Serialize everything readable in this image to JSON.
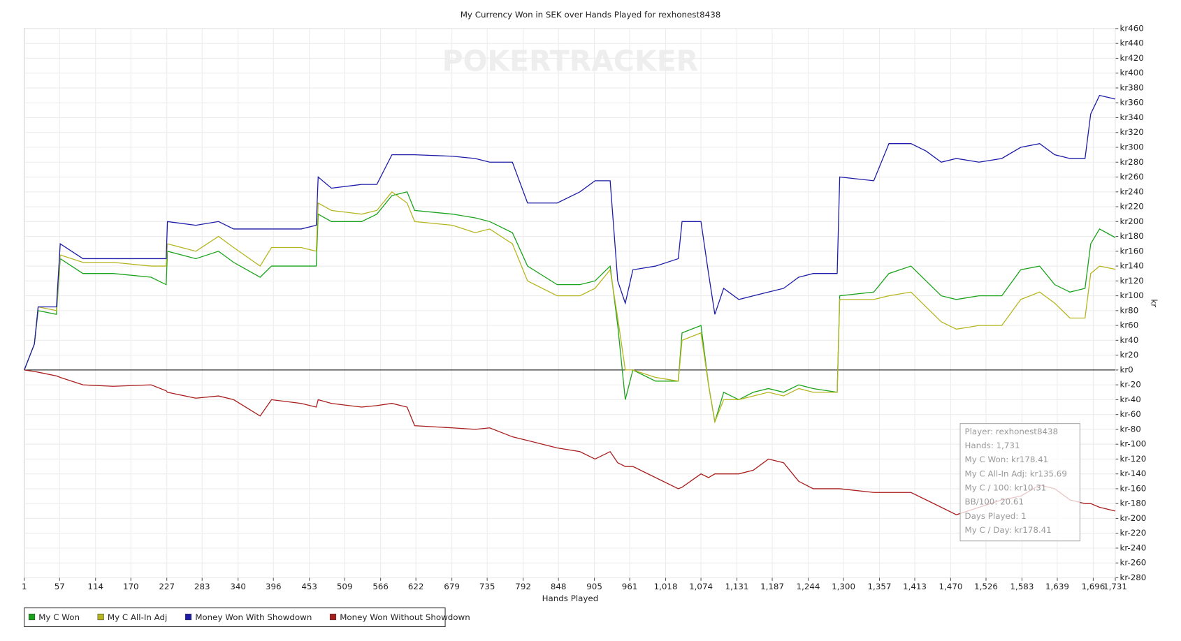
{
  "chart_data": {
    "type": "line",
    "title": "My Currency Won in SEK over Hands Played for rexhonest8438",
    "watermark": "POKERTRACKER",
    "x_label": "Hands Played",
    "y_label": "kr",
    "xlim": [
      1,
      1731
    ],
    "ylim": [
      -280,
      460
    ],
    "grid": true,
    "legend": "bottom-left",
    "xticks": [
      1,
      57,
      114,
      170,
      227,
      283,
      340,
      396,
      453,
      509,
      566,
      622,
      679,
      735,
      792,
      848,
      905,
      961,
      {
        "value": 1018,
        "label": "1,018"
      },
      {
        "value": 1074,
        "label": "1,074"
      },
      {
        "value": 1131,
        "label": "1,131"
      },
      {
        "value": 1187,
        "label": "1,187"
      },
      {
        "value": 1244,
        "label": "1,244"
      },
      {
        "value": 1300,
        "label": "1,300"
      },
      {
        "value": 1357,
        "label": "1,357"
      },
      {
        "value": 1413,
        "label": "1,413"
      },
      {
        "value": 1470,
        "label": "1,470"
      },
      {
        "value": 1526,
        "label": "1,526"
      },
      {
        "value": 1583,
        "label": "1,583"
      },
      {
        "value": 1639,
        "label": "1,639"
      },
      {
        "value": 1696,
        "label": "1,696"
      },
      {
        "value": 1731,
        "label": "1,731"
      }
    ],
    "yticks": [
      {
        "value": 460,
        "label": "kr460"
      },
      {
        "value": 440,
        "label": "kr440"
      },
      {
        "value": 420,
        "label": "kr420"
      },
      {
        "value": 400,
        "label": "kr400"
      },
      {
        "value": 380,
        "label": "kr380"
      },
      {
        "value": 360,
        "label": "kr360"
      },
      {
        "value": 340,
        "label": "kr340"
      },
      {
        "value": 320,
        "label": "kr320"
      },
      {
        "value": 300,
        "label": "kr300"
      },
      {
        "value": 280,
        "label": "kr280"
      },
      {
        "value": 260,
        "label": "kr260"
      },
      {
        "value": 240,
        "label": "kr240"
      },
      {
        "value": 220,
        "label": "kr220"
      },
      {
        "value": 200,
        "label": "kr200"
      },
      {
        "value": 180,
        "label": "kr180"
      },
      {
        "value": 160,
        "label": "kr160"
      },
      {
        "value": 140,
        "label": "kr140"
      },
      {
        "value": 120,
        "label": "kr120"
      },
      {
        "value": 100,
        "label": "kr100"
      },
      {
        "value": 80,
        "label": "kr80"
      },
      {
        "value": 60,
        "label": "kr60"
      },
      {
        "value": 40,
        "label": "kr40"
      },
      {
        "value": 20,
        "label": "kr20"
      },
      {
        "value": 0,
        "label": "kr0"
      },
      {
        "value": -20,
        "label": "kr-20"
      },
      {
        "value": -40,
        "label": "kr-40"
      },
      {
        "value": -60,
        "label": "kr-60"
      },
      {
        "value": -80,
        "label": "kr-80"
      },
      {
        "value": -100,
        "label": "kr-100"
      },
      {
        "value": -120,
        "label": "kr-120"
      },
      {
        "value": -140,
        "label": "kr-140"
      },
      {
        "value": -160,
        "label": "kr-160"
      },
      {
        "value": -180,
        "label": "kr-180"
      },
      {
        "value": -200,
        "label": "kr-200"
      },
      {
        "value": -220,
        "label": "kr-220"
      },
      {
        "value": -240,
        "label": "kr-240"
      },
      {
        "value": -260,
        "label": "kr-260"
      },
      {
        "value": -280,
        "label": "kr-280"
      }
    ],
    "x": [
      1,
      17,
      23,
      52,
      58,
      94,
      142,
      202,
      226,
      228,
      273,
      309,
      333,
      375,
      393,
      440,
      464,
      467,
      488,
      536,
      560,
      584,
      608,
      620,
      680,
      716,
      739,
      775,
      799,
      846,
      882,
      906,
      930,
      942,
      954,
      966,
      1002,
      1038,
      1044,
      1074,
      1086,
      1096,
      1110,
      1134,
      1157,
      1181,
      1205,
      1229,
      1252,
      1290,
      1294,
      1348,
      1372,
      1407,
      1431,
      1455,
      1479,
      1515,
      1551,
      1581,
      1611,
      1635,
      1659,
      1683,
      1692,
      1706,
      1731
    ],
    "series": [
      {
        "name": "My C Won",
        "color": "#1aa31a",
        "values": [
          0,
          35,
          80,
          75,
          150,
          130,
          130,
          125,
          115,
          160,
          150,
          160,
          145,
          125,
          140,
          140,
          140,
          210,
          200,
          200,
          210,
          235,
          240,
          215,
          210,
          205,
          200,
          185,
          140,
          115,
          115,
          120,
          140,
          60,
          -40,
          0,
          -15,
          -15,
          50,
          60,
          -20,
          -70,
          -30,
          -40,
          -30,
          -25,
          -30,
          -20,
          -25,
          -30,
          100,
          105,
          130,
          140,
          120,
          100,
          95,
          100,
          100,
          135,
          140,
          115,
          105,
          110,
          170,
          190,
          178.41
        ]
      },
      {
        "name": "My C All-In Adj",
        "color": "#b5b520",
        "values": [
          0,
          35,
          85,
          80,
          155,
          145,
          145,
          140,
          140,
          170,
          160,
          180,
          165,
          140,
          165,
          165,
          160,
          225,
          215,
          210,
          215,
          240,
          225,
          200,
          195,
          185,
          190,
          170,
          120,
          100,
          100,
          110,
          135,
          70,
          0,
          0,
          -10,
          -15,
          40,
          50,
          -20,
          -70,
          -40,
          -40,
          -35,
          -30,
          -35,
          -25,
          -30,
          -30,
          95,
          95,
          100,
          105,
          85,
          65,
          55,
          60,
          60,
          95,
          105,
          90,
          70,
          70,
          130,
          140,
          135.69
        ]
      },
      {
        "name": "Money Won With Showdown",
        "color": "#1c1ca8",
        "values": [
          0,
          35,
          85,
          85,
          170,
          150,
          150,
          150,
          150,
          200,
          195,
          200,
          190,
          190,
          190,
          190,
          195,
          260,
          245,
          250,
          250,
          290,
          290,
          290,
          288,
          285,
          280,
          280,
          225,
          225,
          240,
          255,
          255,
          120,
          90,
          135,
          140,
          150,
          200,
          200,
          130,
          75,
          110,
          95,
          100,
          105,
          110,
          125,
          130,
          130,
          260,
          255,
          305,
          305,
          295,
          280,
          285,
          280,
          285,
          300,
          305,
          290,
          285,
          285,
          345,
          370,
          365
        ]
      },
      {
        "name": "Money Won Without Showdown",
        "color": "#a81c1c",
        "values": [
          0,
          -2,
          -3,
          -8,
          -10,
          -20,
          -22,
          -20,
          -28,
          -30,
          -38,
          -35,
          -40,
          -62,
          -40,
          -45,
          -50,
          -40,
          -45,
          -50,
          -48,
          -45,
          -50,
          -75,
          -78,
          -80,
          -78,
          -90,
          -95,
          -105,
          -110,
          -120,
          -110,
          -125,
          -130,
          -130,
          -145,
          -160,
          -158,
          -140,
          -145,
          -140,
          -140,
          -140,
          -135,
          -120,
          -125,
          -150,
          -160,
          -160,
          -160,
          -165,
          -165,
          -165,
          -175,
          -185,
          -195,
          -185,
          -175,
          -170,
          -155,
          -160,
          -175,
          -180,
          -180,
          -185,
          -190
        ]
      }
    ],
    "tooltip": [
      "Player: rexhonest8438",
      "Hands: 1,731",
      "My C Won: kr178.41",
      "My C All-In Adj: kr135.69",
      "My C / 100: kr10.31",
      "BB/100: 20.61",
      "Days Played: 1",
      "My C / Day: kr178.41"
    ]
  }
}
